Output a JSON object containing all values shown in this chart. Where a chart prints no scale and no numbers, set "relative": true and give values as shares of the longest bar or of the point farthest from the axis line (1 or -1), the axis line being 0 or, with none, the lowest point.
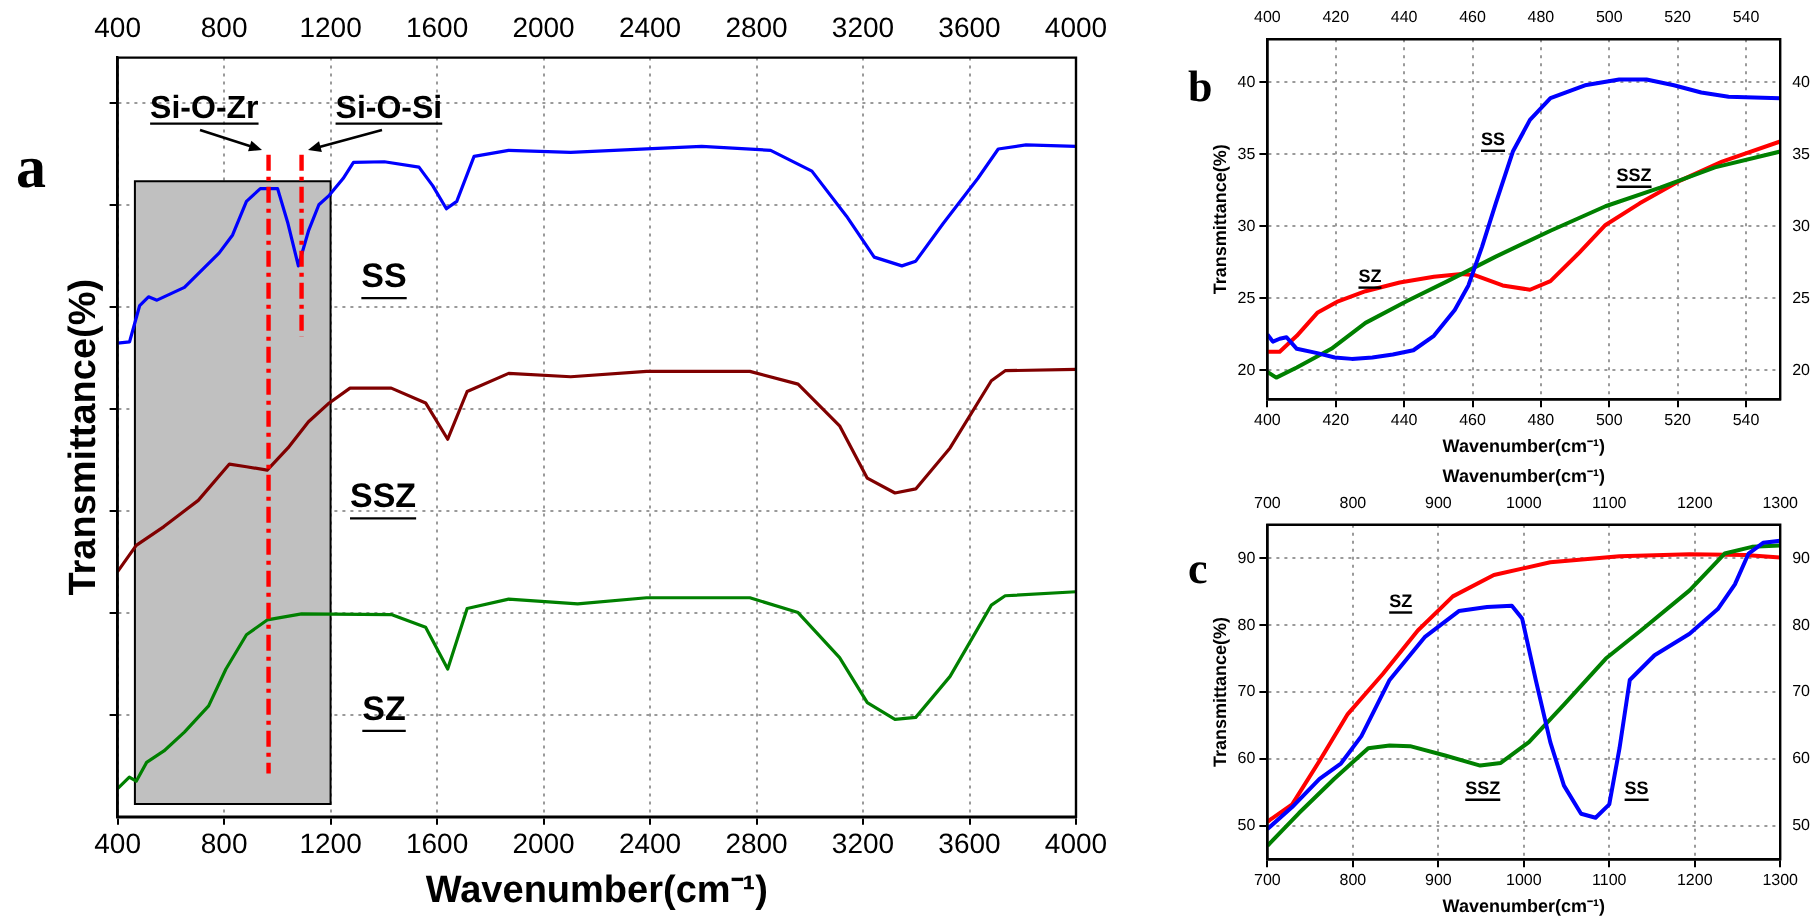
{
  "chart_data": [
    {
      "type": "line",
      "relative": true,
      "xlabel": "Wavenumber(cm⁻¹)",
      "ylabel": "Transmittance(%)",
      "xlim": [
        400,
        4000
      ],
      "xticks": [
        400,
        800,
        1200,
        1600,
        2000,
        2400,
        2800,
        3200,
        3600,
        4000
      ],
      "x2lim": [
        400,
        4000
      ],
      "x2ticks": [
        400,
        800,
        1200,
        1600,
        2000,
        2400,
        2800,
        3200,
        3600,
        4000
      ],
      "grid": true,
      "annotations": [
        "a"
      ],
      "bands": [
        {
          "axis": "x",
          "from": 465,
          "to": 1200,
          "color": "#c0c0c0"
        }
      ],
      "ref_lines": [
        {
          "axis": "x",
          "value": 967,
          "label": "Si-O-Zr",
          "color": "#ff0000",
          "line_style": "dashed"
        },
        {
          "axis": "x",
          "value": 1091,
          "label": "Si-O-Si",
          "color": "#ff0000",
          "line_style": "dashed"
        }
      ],
      "series": [
        {
          "name": "SS",
          "color": "#0000ff",
          "x": [
            400,
            445,
            483,
            516,
            548,
            651,
            781,
            832,
            884,
            936,
            1001,
            1040,
            1079,
            1117,
            1156,
            1195,
            1247,
            1286,
            1402,
            1532,
            1584,
            1635,
            1674,
            1739,
            1869,
            2102,
            2387,
            2594,
            2853,
            3008,
            3138,
            3242,
            3346,
            3398,
            3501,
            3631,
            3708,
            3812,
            4000
          ],
          "values": [
            0.705,
            0.707,
            0.761,
            0.774,
            0.769,
            0.788,
            0.839,
            0.866,
            0.916,
            0.935,
            0.935,
            0.883,
            0.82,
            0.872,
            0.911,
            0.925,
            0.95,
            0.974,
            0.975,
            0.967,
            0.939,
            0.905,
            0.916,
            0.983,
            0.992,
            0.989,
            0.994,
            0.998,
            0.992,
            0.961,
            0.894,
            0.833,
            0.82,
            0.827,
            0.883,
            0.95,
            0.994,
            1,
            0.998
          ]
        },
        {
          "name": "SSZ",
          "color": "#800000",
          "x": [
            400,
            470,
            574,
            703,
            820,
            884,
            962,
            1040,
            1117,
            1195,
            1273,
            1428,
            1557,
            1640,
            1713,
            1869,
            2102,
            2387,
            2775,
            2956,
            3112,
            3216,
            3320,
            3398,
            3527,
            3682,
            3734,
            4000
          ],
          "values": [
            0.365,
            0.404,
            0.432,
            0.471,
            0.525,
            0.521,
            0.516,
            0.549,
            0.588,
            0.616,
            0.638,
            0.638,
            0.616,
            0.562,
            0.633,
            0.66,
            0.655,
            0.663,
            0.663,
            0.644,
            0.582,
            0.504,
            0.482,
            0.488,
            0.549,
            0.649,
            0.664,
            0.666
          ]
        },
        {
          "name": "SZ",
          "color": "#008000",
          "x": [
            400,
            444,
            470,
            509,
            574,
            651,
            742,
            807,
            884,
            962,
            1091,
            1428,
            1557,
            1640,
            1713,
            1869,
            2128,
            2387,
            2775,
            2956,
            3112,
            3216,
            3320,
            3398,
            3527,
            3682,
            3734,
            4000
          ],
          "values": [
            0.042,
            0.059,
            0.053,
            0.081,
            0.098,
            0.126,
            0.165,
            0.22,
            0.271,
            0.293,
            0.302,
            0.301,
            0.282,
            0.22,
            0.31,
            0.324,
            0.317,
            0.326,
            0.326,
            0.304,
            0.237,
            0.17,
            0.145,
            0.148,
            0.209,
            0.315,
            0.329,
            0.335
          ]
        }
      ]
    },
    {
      "type": "line",
      "xlabel": "Wavenumber(cm⁻¹)",
      "ylabel": "Transmittance(%)",
      "xlim": [
        400,
        550
      ],
      "xticks": [
        400,
        420,
        440,
        460,
        480,
        500,
        520,
        540
      ],
      "x2lim": [
        400,
        550
      ],
      "x2ticks": [
        400,
        420,
        440,
        460,
        480,
        500,
        520,
        540
      ],
      "ylim": [
        18,
        43
      ],
      "yticks": [
        20,
        25,
        30,
        35,
        40
      ],
      "y2lim": [
        18,
        43
      ],
      "y2ticks": [
        20,
        25,
        30,
        35,
        40
      ],
      "grid": true,
      "annotations": [
        "b"
      ],
      "series": [
        {
          "name": "SS",
          "color": "#0000ff",
          "x": [
            400,
            401.6,
            403.6,
            405.6,
            408.6,
            414.6,
            419.7,
            424.7,
            430.7,
            436.7,
            442.7,
            448.7,
            454.8,
            458.8,
            462.8,
            466.8,
            471.8,
            476.8,
            482.8,
            492.9,
            502.9,
            510.9,
            518.9,
            526.9,
            534.9,
            550
          ],
          "values": [
            22.5,
            22,
            22.2,
            22.3,
            21.5,
            21.2,
            20.9,
            20.8,
            20.9,
            21.1,
            21.4,
            22.4,
            24.2,
            25.9,
            28.6,
            31.6,
            35.2,
            37.4,
            38.9,
            39.8,
            40.2,
            40.2,
            39.8,
            39.3,
            39,
            38.9
          ]
        },
        {
          "name": "SSZ",
          "color": "#008000",
          "x": [
            400,
            402.6,
            408.6,
            418.7,
            428.7,
            440.7,
            452.7,
            466.8,
            482.8,
            498.9,
            514.9,
            530.9,
            550
          ],
          "values": [
            19.9,
            19.5,
            20.2,
            21.5,
            23.3,
            24.8,
            26.2,
            27.9,
            29.7,
            31.4,
            32.7,
            34.1,
            35.2
          ]
        },
        {
          "name": "SZ",
          "color": "#ff0000",
          "x": [
            400,
            403.6,
            408.6,
            414.6,
            420.7,
            428.7,
            438.7,
            448.7,
            456.8,
            460.8,
            468.8,
            476.8,
            482.8,
            490.9,
            498.9,
            508.9,
            520.9,
            533,
            550
          ],
          "values": [
            21.3,
            21.3,
            22.4,
            24,
            24.8,
            25.5,
            26.1,
            26.5,
            26.7,
            26.6,
            25.9,
            25.6,
            26.2,
            28.1,
            30.1,
            31.6,
            33.2,
            34.5,
            35.9
          ]
        }
      ]
    },
    {
      "type": "line",
      "xlabel": "Wavenumber(cm⁻¹)",
      "x2label": "Wavenumber(cm⁻¹)",
      "ylabel": "Transmittance(%)",
      "xlim": [
        700,
        1300
      ],
      "xticks": [
        700,
        800,
        900,
        1000,
        1100,
        1200,
        1300
      ],
      "x2lim": [
        700,
        1300
      ],
      "x2ticks": [
        700,
        800,
        900,
        1000,
        1100,
        1200,
        1300
      ],
      "ylim": [
        45,
        95
      ],
      "yticks": [
        50,
        60,
        70,
        80,
        90
      ],
      "y2lim": [
        45,
        95
      ],
      "y2ticks": [
        50,
        60,
        70,
        80,
        90
      ],
      "grid": true,
      "annotations": [
        "c"
      ],
      "series": [
        {
          "name": "SS",
          "color": "#0000ff",
          "x": [
            700,
            729,
            761,
            786,
            810,
            843,
            884,
            924,
            957,
            986,
            998,
            1014,
            1031,
            1047,
            1067,
            1084,
            1100,
            1112,
            1124,
            1153,
            1194,
            1227,
            1247,
            1263,
            1280,
            1300
          ],
          "values": [
            49.5,
            52.8,
            57,
            59.3,
            63.4,
            71.8,
            78.2,
            82.1,
            82.7,
            82.9,
            81,
            71.8,
            62.5,
            56,
            51.8,
            51.2,
            53.2,
            61.6,
            71.8,
            75.5,
            78.7,
            82.4,
            86.1,
            90.7,
            92.3,
            92.6
          ]
        },
        {
          "name": "SSZ",
          "color": "#008000",
          "x": [
            700,
            737,
            778,
            818,
            843,
            867,
            908,
            949,
            973,
            1006,
            1047,
            1096,
            1137,
            1194,
            1235,
            1267,
            1300
          ],
          "values": [
            47,
            51.9,
            57,
            61.6,
            62,
            61.9,
            60.5,
            59,
            59.4,
            62.5,
            68.1,
            75,
            79.2,
            85.2,
            90.7,
            91.7,
            91.9
          ]
        },
        {
          "name": "SZ",
          "color": "#ff0000",
          "x": [
            700,
            729,
            761,
            794,
            835,
            876,
            917,
            965,
            1031,
            1112,
            1194,
            1259,
            1300
          ],
          "values": [
            50.6,
            53.2,
            59.7,
            66.7,
            72.7,
            79.2,
            84.3,
            87.5,
            89.4,
            90.3,
            90.6,
            90.5,
            90.1
          ]
        }
      ]
    }
  ]
}
